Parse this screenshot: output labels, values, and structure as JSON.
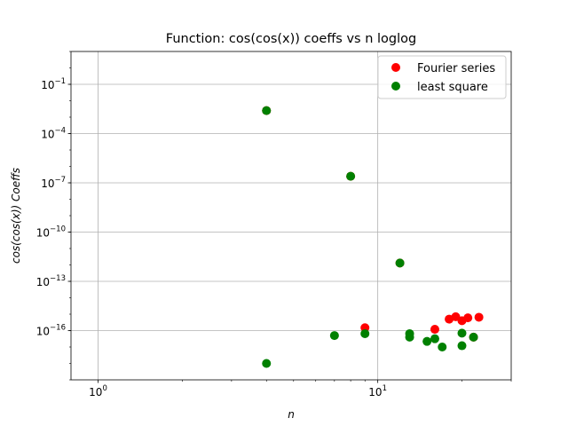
{
  "chart_data": {
    "type": "scatter",
    "title": "Function: cos(cos(x)) coeffs vs n loglog",
    "xlabel": "n",
    "ylabel": "cos(cos(x)) Coeffs",
    "xscale": "log",
    "yscale": "log",
    "xlim": [
      0.8,
      30.0
    ],
    "ylim": [
      1e-19,
      10.0
    ],
    "grid": "major",
    "legend_position": "top-right",
    "x_tick_labels": [
      {
        "value": 1,
        "base": "10",
        "exp": "0"
      },
      {
        "value": 10,
        "base": "10",
        "exp": "1"
      }
    ],
    "y_tick_labels": [
      {
        "value": 0.1,
        "base": "10",
        "exp": "−1"
      },
      {
        "value": 0.0001,
        "base": "10",
        "exp": "−4"
      },
      {
        "value": 1e-07,
        "base": "10",
        "exp": "−7"
      },
      {
        "value": 1e-10,
        "base": "10",
        "exp": "−10"
      },
      {
        "value": 1e-13,
        "base": "10",
        "exp": "−13"
      },
      {
        "value": 1e-16,
        "base": "10",
        "exp": "−16"
      }
    ],
    "series": [
      {
        "name": "Fourier series",
        "color": "#ff0000",
        "points": [
          {
            "x": 4,
            "y": 0.0025
          },
          {
            "x": 8,
            "y": 2.5e-07
          },
          {
            "x": 12,
            "y": 1.3e-12
          },
          {
            "x": 9,
            "y": 1.5e-16
          },
          {
            "x": 16,
            "y": 1.2e-16
          },
          {
            "x": 18,
            "y": 5e-16
          },
          {
            "x": 19,
            "y": 7e-16
          },
          {
            "x": 20,
            "y": 4e-16
          },
          {
            "x": 21,
            "y": 6e-16
          },
          {
            "x": 23,
            "y": 6.5e-16
          },
          {
            "x": 22,
            "y": 4e-17
          }
        ]
      },
      {
        "name": "least square",
        "color": "#008000",
        "points": [
          {
            "x": 4,
            "y": 0.0025
          },
          {
            "x": 8,
            "y": 2.5e-07
          },
          {
            "x": 12,
            "y": 1.3e-12
          },
          {
            "x": 4,
            "y": 1e-18
          },
          {
            "x": 7,
            "y": 5e-17
          },
          {
            "x": 9,
            "y": 6.5e-17
          },
          {
            "x": 13,
            "y": 6.5e-17
          },
          {
            "x": 13,
            "y": 4e-17
          },
          {
            "x": 15,
            "y": 2.2e-17
          },
          {
            "x": 16,
            "y": 3.2e-17
          },
          {
            "x": 17,
            "y": 1e-17
          },
          {
            "x": 20,
            "y": 7e-17
          },
          {
            "x": 20,
            "y": 1.2e-17
          },
          {
            "x": 22,
            "y": 4e-17
          }
        ]
      }
    ]
  }
}
